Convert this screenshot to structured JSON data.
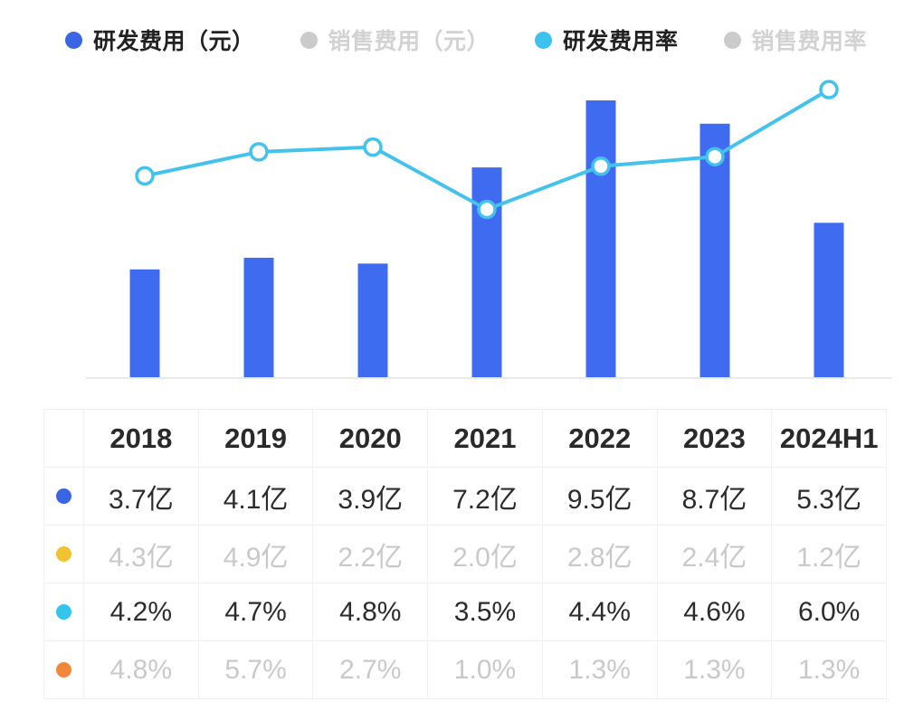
{
  "legend": {
    "items": [
      {
        "label": "研发费用（元）",
        "color": "#3a66e6",
        "active": true
      },
      {
        "label": "销售费用（元）",
        "color": "#cbcbcb",
        "active": false
      },
      {
        "label": "研发费用率",
        "color": "#3cc2ee",
        "active": true
      },
      {
        "label": "销售费用率",
        "color": "#cbcbcb",
        "active": false
      }
    ]
  },
  "chart_data": {
    "type": "combo",
    "categories": [
      "2018",
      "2019",
      "2020",
      "2021",
      "2022",
      "2023",
      "2024H1"
    ],
    "series": [
      {
        "name": "研发费用(元)",
        "type": "bar",
        "unit": "亿",
        "color": "#3e6bf0",
        "visible": true,
        "values": [
          3.7,
          4.1,
          3.9,
          7.2,
          9.5,
          8.7,
          5.3
        ]
      },
      {
        "name": "销售费用(元)",
        "type": "bar",
        "unit": "亿",
        "color": "#f2c233",
        "visible": false,
        "values": [
          4.3,
          4.9,
          2.2,
          2.0,
          2.8,
          2.4,
          1.2
        ]
      },
      {
        "name": "研发费用率",
        "type": "line",
        "unit": "%",
        "color": "#43c3ec",
        "visible": true,
        "values": [
          4.2,
          4.7,
          4.8,
          3.5,
          4.4,
          4.6,
          6.0
        ]
      },
      {
        "name": "销售费用率",
        "type": "line",
        "unit": "%",
        "color": "#f0873b",
        "visible": false,
        "values": [
          4.8,
          5.7,
          2.7,
          1.0,
          1.3,
          1.3,
          1.3
        ]
      }
    ],
    "title": "",
    "xlabel": "",
    "ylabel": "",
    "left_axis": {
      "min": 0,
      "max_approx": 10,
      "unit": "亿",
      "ticks_shown": false
    },
    "right_axis": {
      "min": 0,
      "max_approx": 6.6,
      "unit": "%",
      "ticks_shown": false
    },
    "grid": false,
    "legend_position": "top",
    "marker_style": {
      "fill": "#ffffff",
      "radius": 9
    },
    "axis_line_color": "#e9e9e9"
  },
  "table": {
    "header": [
      "",
      "2018",
      "2019",
      "2020",
      "2021",
      "2022",
      "2023",
      "2024H1"
    ],
    "rows": [
      {
        "series": "研发费用(元)",
        "dot_color": "#3a66e6",
        "active": true,
        "cells": [
          "3.7亿",
          "4.1亿",
          "3.9亿",
          "7.2亿",
          "9.5亿",
          "8.7亿",
          "5.3亿"
        ]
      },
      {
        "series": "销售费用(元)",
        "dot_color": "#f2c233",
        "active": false,
        "cells": [
          "4.3亿",
          "4.9亿",
          "2.2亿",
          "2.0亿",
          "2.8亿",
          "2.4亿",
          "1.2亿"
        ]
      },
      {
        "series": "研发费用率",
        "dot_color": "#35c4ee",
        "active": true,
        "cells": [
          "4.2%",
          "4.7%",
          "4.8%",
          "3.5%",
          "4.4%",
          "4.6%",
          "6.0%"
        ]
      },
      {
        "series": "销售费用率",
        "dot_color": "#f0873b",
        "active": false,
        "cells": [
          "4.8%",
          "5.7%",
          "2.7%",
          "1.0%",
          "1.3%",
          "1.3%",
          "1.3%"
        ]
      }
    ]
  }
}
